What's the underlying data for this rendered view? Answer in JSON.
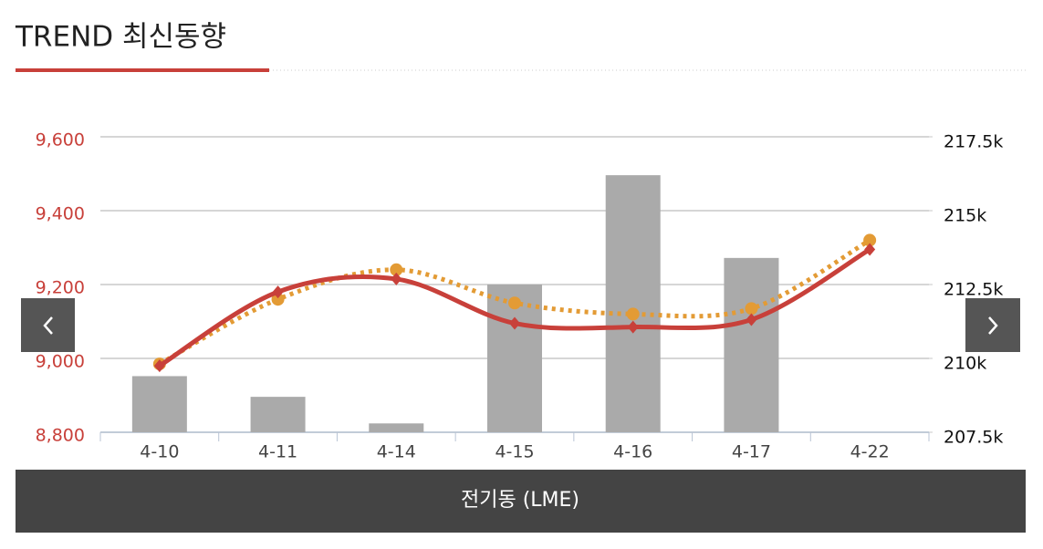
{
  "header": {
    "title": "TREND 최신동향"
  },
  "chart_data": {
    "type": "combo",
    "categories": [
      "4-10",
      "4-11",
      "4-14",
      "4-15",
      "4-16",
      "4-17",
      "4-22"
    ],
    "ylim": [
      8800,
      9600
    ],
    "yticks": [
      {
        "value": 8800,
        "label": "8,800"
      },
      {
        "value": 9000,
        "label": "9,000"
      },
      {
        "value": 9200,
        "label": "9,200"
      },
      {
        "value": 9400,
        "label": "9,400"
      },
      {
        "value": 9600,
        "label": "9,600"
      }
    ],
    "y2lim": [
      207500,
      217500
    ],
    "y2ticks": [
      {
        "value": 207500,
        "label": "207.5k"
      },
      {
        "value": 210000,
        "label": "210k"
      },
      {
        "value": 212500,
        "label": "212.5k"
      },
      {
        "value": 215000,
        "label": "215k"
      },
      {
        "value": 217500,
        "label": "217.5k"
      }
    ],
    "grid": true,
    "series": [
      {
        "type": "bar",
        "axis": "y2",
        "color": "#aaaaaa",
        "values": [
          209400,
          208700,
          207800,
          212500,
          216200,
          213400,
          null
        ]
      },
      {
        "type": "line",
        "color": "#e39b35",
        "dashed": true,
        "marker": "circle",
        "values": [
          8985,
          9160,
          9240,
          9150,
          9120,
          9135,
          9320
        ]
      },
      {
        "type": "line",
        "color": "#c8403a",
        "dashed": false,
        "marker": "diamond",
        "values": [
          8980,
          9180,
          9215,
          9095,
          9085,
          9105,
          9295
        ]
      }
    ]
  },
  "footer": {
    "label": "전기동 (LME)"
  }
}
